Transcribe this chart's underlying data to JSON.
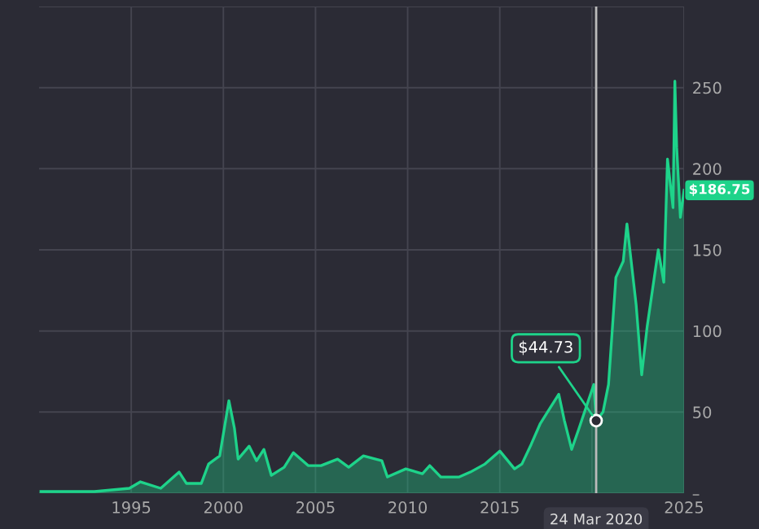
{
  "chart_data": {
    "type": "area",
    "x": [
      1990.1,
      1993.0,
      1994.9,
      1995.5,
      1996.6,
      1997.6,
      1998.0,
      1998.8,
      1999.2,
      1999.8,
      2000.3,
      2000.6,
      2000.8,
      2001.4,
      2001.8,
      2002.2,
      2002.6,
      2003.3,
      2003.8,
      2004.6,
      2005.3,
      2006.2,
      2006.8,
      2007.6,
      2008.6,
      2008.9,
      2009.9,
      2010.8,
      2011.2,
      2011.8,
      2012.8,
      2013.4,
      2014.2,
      2015.0,
      2015.8,
      2016.2,
      2016.7,
      2017.2,
      2018.2,
      2018.5,
      2018.9,
      2019.3,
      2020.1,
      2020.23,
      2020.6,
      2020.9,
      2021.3,
      2021.7,
      2021.9,
      2022.4,
      2022.7,
      2023.0,
      2023.6,
      2023.9,
      2024.1,
      2024.4,
      2024.5,
      2024.6,
      2024.8,
      2025.0
    ],
    "series": [
      {
        "color": "#1ed38a",
        "values": [
          1,
          1,
          3,
          7,
          3,
          13,
          6,
          6,
          18,
          23,
          57,
          40,
          21,
          29,
          20,
          27,
          11,
          16,
          25,
          17,
          17,
          21,
          16,
          23,
          20,
          10,
          15,
          12,
          17,
          10,
          10,
          13,
          18,
          26,
          15,
          18,
          30,
          43,
          61,
          45,
          27,
          40,
          67,
          44.73,
          50,
          67,
          133,
          143,
          166,
          116,
          73,
          103,
          150,
          130,
          206,
          176,
          254,
          213,
          170,
          186.75
        ]
      }
    ],
    "xlim": [
      1990,
      2025
    ],
    "xticks": [
      1995,
      2000,
      2005,
      2010,
      2015,
      {
        "value": 2020,
        "label": null
      },
      2025
    ],
    "ylim": [
      0,
      300
    ],
    "yticks": [
      {
        "value": 0,
        "label": "–"
      },
      50,
      100,
      150,
      200,
      250,
      {
        "value": 300,
        "label": null
      }
    ],
    "grid": true,
    "ref_lines": [
      {
        "axis": "x",
        "value": 2020.23,
        "label": "24 Mar 2020",
        "color": "#bbbbbb"
      }
    ],
    "annotations": [
      {
        "text": "$44.73",
        "x": 2020.23,
        "y": 44.73
      },
      {
        "text": "$186.75",
        "x": 2025,
        "y": 186.75
      }
    ]
  }
}
